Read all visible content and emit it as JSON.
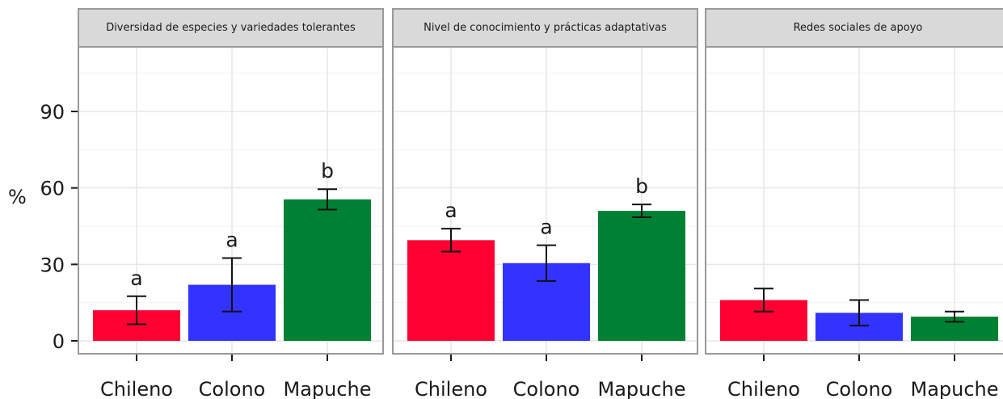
{
  "chart_data": {
    "type": "bar",
    "faceted": true,
    "ylabel": "%",
    "ylim": [
      -3,
      118
    ],
    "yticks": [
      0,
      30,
      60,
      90
    ],
    "grid": true,
    "categories": [
      "Chileno",
      "Colono",
      "Mapuche"
    ],
    "colors": [
      "#ff0033",
      "#3333ff",
      "#008033"
    ],
    "panels": [
      {
        "title": "Diversidad de especies y variedades tolerantes",
        "values": [
          12,
          22,
          55.5
        ],
        "errors": [
          5.5,
          10.5,
          4
        ],
        "letters": [
          "a",
          "a",
          "b"
        ]
      },
      {
        "title": "Nivel de conocimiento y prácticas adaptativas",
        "values": [
          39.5,
          30.5,
          51
        ],
        "errors": [
          4.5,
          7,
          2.5
        ],
        "letters": [
          "a",
          "a",
          "b"
        ]
      },
      {
        "title": "Redes sociales de apoyo",
        "values": [
          16,
          11,
          9.5
        ],
        "errors": [
          4.5,
          5,
          2
        ],
        "letters": [
          "",
          "",
          ""
        ]
      }
    ]
  }
}
